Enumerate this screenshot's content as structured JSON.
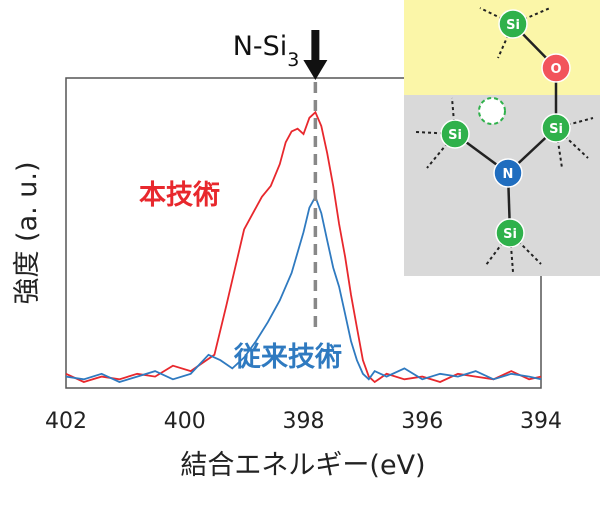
{
  "chart_data": {
    "type": "line",
    "xlabel": "結合エネルギー(eV)",
    "ylabel": "強度 (a. u.)",
    "xlim": [
      402,
      394
    ],
    "x_reversed": true,
    "ylim": [
      0,
      1.05
    ],
    "xticks": [
      "402",
      "400",
      "398",
      "396",
      "394"
    ],
    "grid": false,
    "annotations": [
      {
        "text": "N-Si",
        "subscript": "3",
        "x": 397.8,
        "marker": "downward arrow with dashed vertical line"
      }
    ],
    "series": [
      {
        "name": "本技術",
        "color": "#e8282d",
        "x": [
          402.0,
          401.7,
          401.4,
          401.1,
          400.8,
          400.5,
          400.2,
          399.9,
          399.7,
          399.5,
          399.3,
          399.15,
          399.0,
          398.85,
          398.7,
          398.55,
          398.4,
          398.3,
          398.2,
          398.1,
          398.0,
          397.9,
          397.8,
          397.7,
          397.6,
          397.5,
          397.4,
          397.3,
          397.2,
          397.1,
          397.0,
          396.9,
          396.8,
          396.6,
          396.3,
          396.0,
          395.7,
          395.4,
          395.1,
          394.8,
          394.5,
          394.2,
          394.0
        ],
        "values": [
          0.03,
          0.0,
          0.02,
          0.01,
          0.03,
          0.02,
          0.06,
          0.04,
          0.07,
          0.1,
          0.28,
          0.42,
          0.56,
          0.62,
          0.68,
          0.72,
          0.8,
          0.88,
          0.92,
          0.93,
          0.91,
          0.97,
          0.99,
          0.94,
          0.84,
          0.72,
          0.58,
          0.46,
          0.32,
          0.2,
          0.08,
          0.02,
          0.0,
          0.03,
          0.01,
          0.02,
          0.0,
          0.03,
          0.02,
          0.01,
          0.04,
          0.01,
          0.02
        ]
      },
      {
        "name": "従来技術",
        "color": "#2f7ac0",
        "x": [
          402.0,
          401.7,
          401.4,
          401.1,
          400.8,
          400.5,
          400.2,
          399.9,
          399.6,
          399.4,
          399.2,
          399.0,
          398.8,
          398.6,
          398.4,
          398.2,
          398.0,
          397.9,
          397.8,
          397.7,
          397.6,
          397.5,
          397.4,
          397.3,
          397.2,
          397.1,
          397.0,
          396.9,
          396.8,
          396.6,
          396.3,
          396.0,
          395.7,
          395.4,
          395.1,
          394.8,
          394.5,
          394.2,
          394.0
        ],
        "values": [
          0.02,
          0.01,
          0.03,
          0.0,
          0.02,
          0.04,
          0.01,
          0.03,
          0.1,
          0.08,
          0.05,
          0.09,
          0.15,
          0.22,
          0.3,
          0.4,
          0.55,
          0.64,
          0.68,
          0.62,
          0.52,
          0.42,
          0.35,
          0.25,
          0.15,
          0.08,
          0.03,
          0.01,
          0.04,
          0.02,
          0.05,
          0.01,
          0.03,
          0.02,
          0.04,
          0.01,
          0.03,
          0.02,
          0.01
        ]
      }
    ]
  },
  "schematic": {
    "atoms": [
      {
        "id": "si_top",
        "label": "Si",
        "color": "#2fb14b"
      },
      {
        "id": "o",
        "label": "O",
        "color": "#f2545b"
      },
      {
        "id": "si_left",
        "label": "Si",
        "color": "#2fb14b"
      },
      {
        "id": "si_right",
        "label": "Si",
        "color": "#2fb14b"
      },
      {
        "id": "n",
        "label": "N",
        "color": "#1f6dbf"
      },
      {
        "id": "si_bottom",
        "label": "Si",
        "color": "#2fb14b"
      }
    ],
    "vacancy_color": "#2fb14b",
    "top_band_color": "#fbf6a8",
    "bottom_band_color": "#d9d9d9"
  }
}
